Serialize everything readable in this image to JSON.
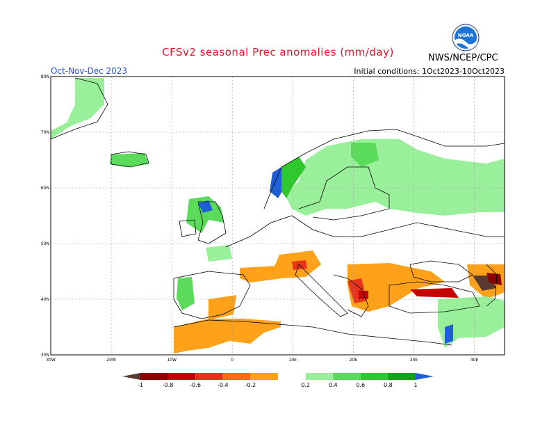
{
  "header": {
    "title": "CFSv2 seasonal Prec anomalies (mm/day)",
    "period": "Oct-Nov-Dec 2023",
    "initial_conditions": "Initial conditions: 1Oct2023-10Oct2023",
    "agency": "NWS/NCEP/CPC",
    "logo_text": "NOAA"
  },
  "map": {
    "lon_labels": [
      "30W",
      "20W",
      "10W",
      "0",
      "10E",
      "20E",
      "30E",
      "40E"
    ],
    "lat_labels": [
      "80N",
      "70N",
      "60N",
      "50N",
      "40N",
      "30N"
    ],
    "lon_range": [
      -30,
      45
    ],
    "lat_range": [
      30,
      80
    ],
    "colors": {
      "land_outline": "#000000",
      "ocean": "#ffffff",
      "grid": "#9a9a9a"
    },
    "anomaly_regions": [
      {
        "name": "Greenland east coast",
        "value": 0.3
      },
      {
        "name": "Iceland",
        "value": 0.4
      },
      {
        "name": "Norway west coast",
        "value": 0.9
      },
      {
        "name": "Scandinavia / Finland / NW Russia",
        "value": 0.3
      },
      {
        "name": "Scotland",
        "value": 0.5
      },
      {
        "name": "Alps",
        "value": -0.3
      },
      {
        "name": "Balkans / Greece",
        "value": -0.5
      },
      {
        "name": "Turkey north coast",
        "value": -0.6
      },
      {
        "name": "Caucasus",
        "value": -0.9
      },
      {
        "name": "NW Africa / Morocco",
        "value": -0.3
      },
      {
        "name": "Iberia northwest",
        "value": 0.5
      },
      {
        "name": "Levant coast",
        "value": 0.8
      }
    ]
  },
  "colorbar": {
    "labels": [
      "-1",
      "-0.8",
      "-0.6",
      "-0.4",
      "-0.2",
      "0.2",
      "0.4",
      "0.6",
      "0.8",
      "1"
    ],
    "colors": [
      "#5a3a2e",
      "#8b0000",
      "#c40000",
      "#e8331a",
      "#ff6a1a",
      "#ffa21a",
      "#ffffff",
      "#9af09a",
      "#5adc5a",
      "#2ec82e",
      "#16a016",
      "#1e5fd6"
    ]
  }
}
